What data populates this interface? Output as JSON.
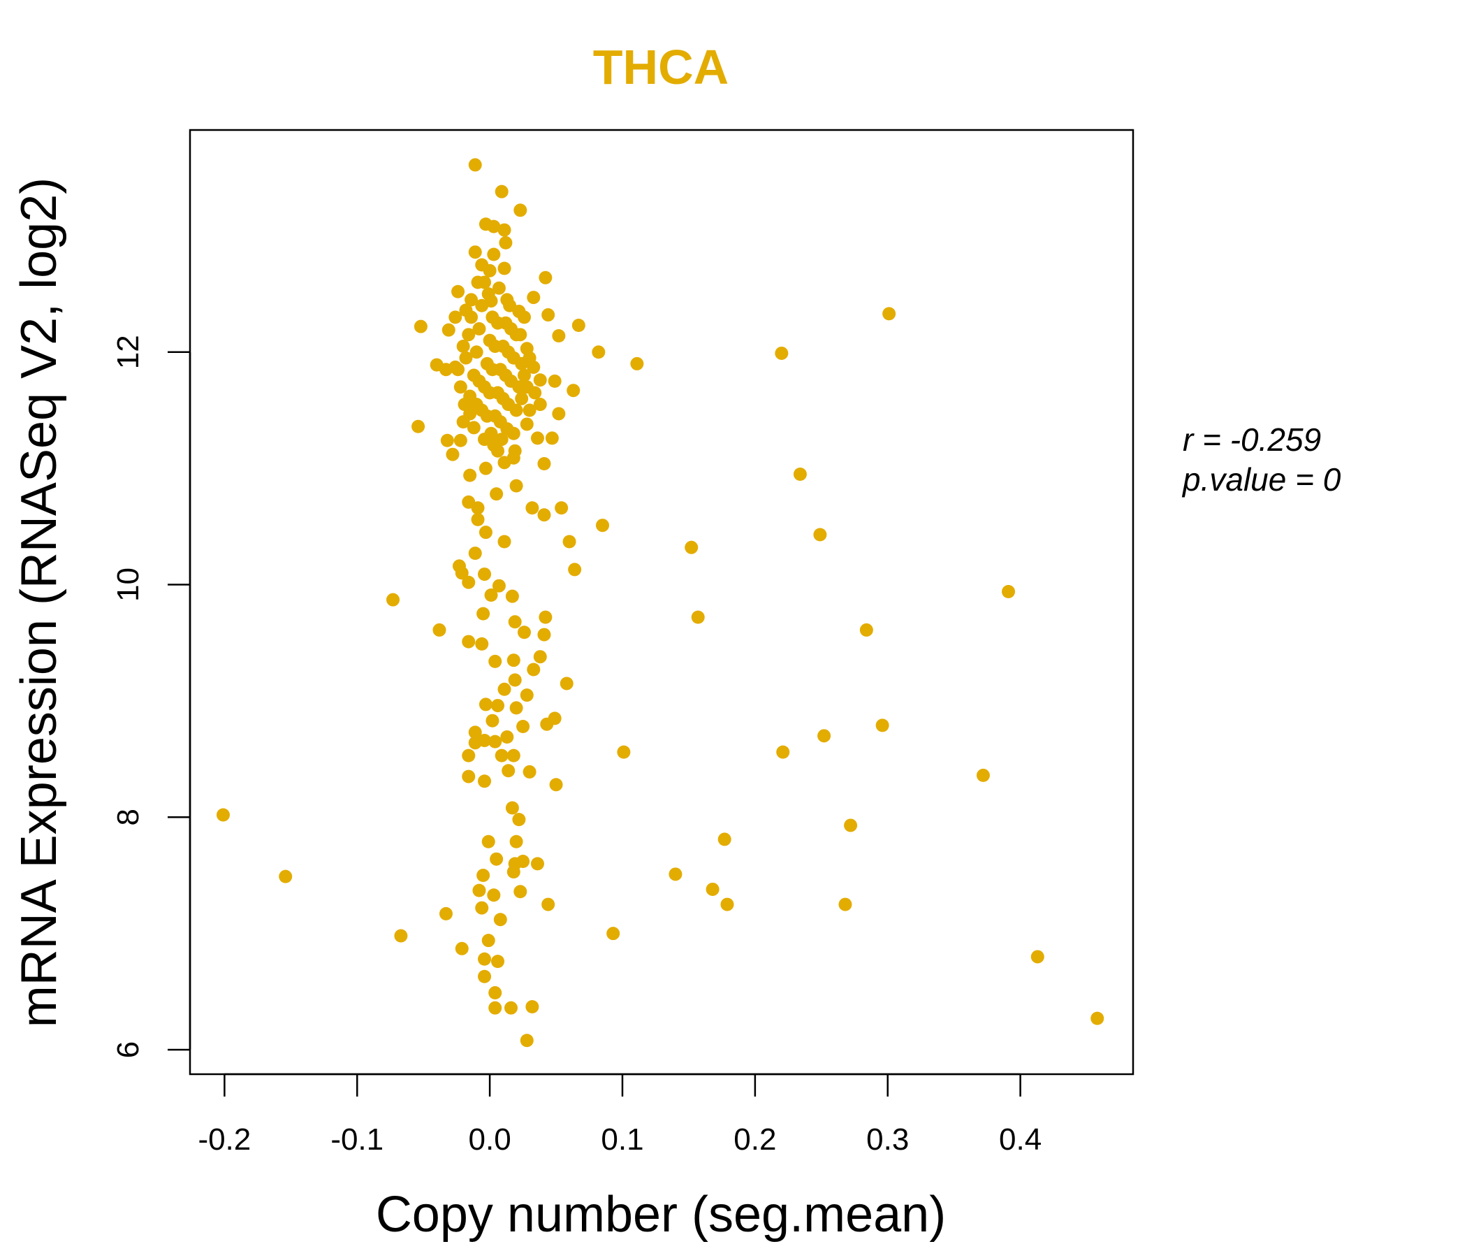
{
  "chart_data": {
    "type": "scatter",
    "title": "THCA",
    "xlabel": "Copy number (seg.mean)",
    "ylabel": "mRNA Expression (RNASeq V2, log2)",
    "xlim": [
      -0.226,
      0.485
    ],
    "ylim": [
      5.79,
      13.91
    ],
    "xticks": [
      -0.2,
      -0.1,
      0.0,
      0.1,
      0.2,
      0.3,
      0.4
    ],
    "xtick_labels": [
      "-0.2",
      "-0.1",
      "0.0",
      "0.1",
      "0.2",
      "0.3",
      "0.4"
    ],
    "yticks": [
      6,
      8,
      10,
      12
    ],
    "ytick_labels": [
      "6",
      "8",
      "10",
      "12"
    ],
    "grid": false,
    "color": "#E3AC00",
    "annotation": {
      "r": "r = -0.259",
      "p": "p.value = 0"
    },
    "points": [
      [
        -0.201,
        8.02
      ],
      [
        -0.154,
        7.49
      ],
      [
        -0.073,
        9.87
      ],
      [
        -0.067,
        6.98
      ],
      [
        -0.038,
        9.61
      ],
      [
        -0.033,
        7.17
      ],
      [
        -0.021,
        6.87
      ],
      [
        -0.052,
        12.22
      ],
      [
        -0.054,
        11.36
      ],
      [
        -0.04,
        11.89
      ],
      [
        0.082,
        12.0
      ],
      [
        0.111,
        11.9
      ],
      [
        0.067,
        12.23
      ],
      [
        0.085,
        10.51
      ],
      [
        0.06,
        10.37
      ],
      [
        0.064,
        10.13
      ],
      [
        0.054,
        10.66
      ],
      [
        0.041,
        11.04
      ],
      [
        0.047,
        11.26
      ],
      [
        0.052,
        11.47
      ],
      [
        0.063,
        11.67
      ],
      [
        0.058,
        9.15
      ],
      [
        0.049,
        8.85
      ],
      [
        0.05,
        8.28
      ],
      [
        0.044,
        7.25
      ],
      [
        0.036,
        7.6
      ],
      [
        0.032,
        6.37
      ],
      [
        0.028,
        6.08
      ],
      [
        0.016,
        6.36
      ],
      [
        0.004,
        6.36
      ],
      [
        0.004,
        6.49
      ],
      [
        -0.004,
        6.63
      ],
      [
        -0.004,
        6.78
      ],
      [
        0.006,
        6.76
      ],
      [
        -0.001,
        6.94
      ],
      [
        0.008,
        7.12
      ],
      [
        -0.006,
        7.22
      ],
      [
        0.003,
        7.33
      ],
      [
        -0.008,
        7.37
      ],
      [
        -0.005,
        7.5
      ],
      [
        0.023,
        7.36
      ],
      [
        0.018,
        7.53
      ],
      [
        0.019,
        7.6
      ],
      [
        0.025,
        7.62
      ],
      [
        0.005,
        7.64
      ],
      [
        -0.001,
        7.79
      ],
      [
        0.02,
        7.79
      ],
      [
        0.022,
        7.98
      ],
      [
        0.017,
        8.08
      ],
      [
        0.093,
        7.0
      ],
      [
        0.101,
        8.56
      ],
      [
        0.14,
        7.51
      ],
      [
        0.152,
        10.32
      ],
      [
        0.157,
        9.72
      ],
      [
        0.168,
        7.38
      ],
      [
        0.177,
        7.81
      ],
      [
        0.179,
        7.25
      ],
      [
        0.22,
        11.99
      ],
      [
        0.221,
        8.56
      ],
      [
        0.234,
        10.95
      ],
      [
        0.249,
        10.43
      ],
      [
        0.252,
        8.7
      ],
      [
        0.268,
        7.25
      ],
      [
        0.272,
        7.93
      ],
      [
        0.284,
        9.61
      ],
      [
        0.296,
        8.79
      ],
      [
        0.301,
        12.33
      ],
      [
        0.372,
        8.36
      ],
      [
        0.391,
        9.94
      ],
      [
        0.413,
        6.8
      ],
      [
        0.458,
        6.27
      ],
      [
        -0.011,
        13.61
      ],
      [
        0.009,
        13.38
      ],
      [
        0.023,
        13.22
      ],
      [
        -0.003,
        13.1
      ],
      [
        0.011,
        13.05
      ],
      [
        0.003,
        13.08
      ],
      [
        0.012,
        12.94
      ],
      [
        -0.011,
        12.86
      ],
      [
        0.003,
        12.84
      ],
      [
        0.011,
        12.72
      ],
      [
        0.042,
        12.64
      ],
      [
        -0.024,
        12.52
      ],
      [
        0.033,
        12.47
      ],
      [
        0.044,
        12.32
      ],
      [
        -0.031,
        12.19
      ],
      [
        -0.016,
        10.71
      ],
      [
        -0.009,
        10.56
      ],
      [
        -0.003,
        10.45
      ],
      [
        0.011,
        10.37
      ],
      [
        -0.011,
        10.27
      ],
      [
        -0.023,
        10.16
      ],
      [
        -0.021,
        10.1
      ],
      [
        -0.016,
        10.02
      ],
      [
        -0.004,
        10.09
      ],
      [
        0.001,
        9.91
      ],
      [
        0.007,
        9.99
      ],
      [
        0.017,
        9.9
      ],
      [
        0.019,
        9.68
      ],
      [
        -0.005,
        9.75
      ],
      [
        0.042,
        9.72
      ],
      [
        0.041,
        9.57
      ],
      [
        0.026,
        9.59
      ],
      [
        -0.016,
        9.51
      ],
      [
        -0.006,
        9.49
      ],
      [
        0.004,
        9.34
      ],
      [
        0.018,
        9.35
      ],
      [
        0.038,
        9.38
      ],
      [
        0.033,
        9.27
      ],
      [
        0.011,
        9.1
      ],
      [
        0.028,
        9.05
      ],
      [
        0.019,
        9.18
      ],
      [
        -0.003,
        8.97
      ],
      [
        0.006,
        8.96
      ],
      [
        0.02,
        8.94
      ],
      [
        0.002,
        8.83
      ],
      [
        0.025,
        8.78
      ],
      [
        -0.011,
        8.73
      ],
      [
        -0.004,
        8.66
      ],
      [
        0.013,
        8.69
      ],
      [
        -0.011,
        8.64
      ],
      [
        -0.016,
        8.53
      ],
      [
        0.009,
        8.53
      ],
      [
        0.018,
        8.53
      ],
      [
        0.014,
        8.4
      ],
      [
        0.03,
        8.39
      ],
      [
        -0.016,
        8.35
      ],
      [
        -0.004,
        8.31
      ],
      [
        0.004,
        8.65
      ],
      [
        0.043,
        8.8
      ],
      [
        -0.009,
        10.66
      ],
      [
        0.005,
        10.78
      ],
      [
        0.02,
        10.85
      ],
      [
        0.032,
        10.66
      ],
      [
        0.041,
        10.6
      ],
      [
        -0.015,
        10.94
      ],
      [
        -0.003,
        11.0
      ],
      [
        0.018,
        11.09
      ],
      [
        0.006,
        11.15
      ],
      [
        -0.028,
        11.12
      ],
      [
        -0.032,
        11.24
      ],
      [
        -0.022,
        11.24
      ],
      [
        0.036,
        11.26
      ],
      [
        0.028,
        11.38
      ],
      [
        -0.015,
        11.47
      ],
      [
        0.001,
        11.3
      ],
      [
        0.013,
        11.34
      ],
      [
        -0.019,
        11.55
      ],
      [
        0.038,
        11.55
      ],
      [
        0.038,
        11.76
      ],
      [
        0.049,
        11.75
      ],
      [
        -0.033,
        11.85
      ],
      [
        -0.026,
        11.87
      ],
      [
        0.033,
        11.87
      ],
      [
        0.028,
        12.03
      ],
      [
        0.023,
        12.15
      ],
      [
        -0.018,
        12.36
      ],
      [
        -0.009,
        12.6
      ],
      [
        -0.004,
        12.6
      ],
      [
        0.001,
        12.44
      ],
      [
        0.013,
        12.45
      ],
      [
        0.052,
        12.14
      ],
      [
        -0.02,
        11.4
      ],
      [
        -0.015,
        11.62
      ],
      [
        -0.012,
        11.8
      ],
      [
        -0.01,
        12.0
      ],
      [
        -0.008,
        12.2
      ],
      [
        -0.006,
        11.5
      ],
      [
        -0.004,
        11.7
      ],
      [
        -0.002,
        11.9
      ],
      [
        0.0,
        12.1
      ],
      [
        0.002,
        12.3
      ],
      [
        0.004,
        11.45
      ],
      [
        0.006,
        11.65
      ],
      [
        0.008,
        11.85
      ],
      [
        0.01,
        12.05
      ],
      [
        0.012,
        12.25
      ],
      [
        0.014,
        11.55
      ],
      [
        0.016,
        11.75
      ],
      [
        0.018,
        11.95
      ],
      [
        0.02,
        12.15
      ],
      [
        0.022,
        12.35
      ],
      [
        0.024,
        11.6
      ],
      [
        0.026,
        11.8
      ],
      [
        0.028,
        11.7
      ],
      [
        0.03,
        11.95
      ],
      [
        -0.018,
        11.95
      ],
      [
        -0.016,
        12.15
      ],
      [
        -0.014,
        12.3
      ],
      [
        -0.012,
        11.35
      ],
      [
        -0.01,
        11.55
      ],
      [
        -0.008,
        11.75
      ],
      [
        -0.006,
        12.4
      ],
      [
        -0.004,
        11.25
      ],
      [
        -0.002,
        11.45
      ],
      [
        0.0,
        11.65
      ],
      [
        0.002,
        11.85
      ],
      [
        0.004,
        12.05
      ],
      [
        0.006,
        12.25
      ],
      [
        0.008,
        11.4
      ],
      [
        0.01,
        11.6
      ],
      [
        0.012,
        11.8
      ],
      [
        0.014,
        12.0
      ],
      [
        0.016,
        12.2
      ],
      [
        0.018,
        11.3
      ],
      [
        0.02,
        11.5
      ],
      [
        0.022,
        11.7
      ],
      [
        0.024,
        11.9
      ],
      [
        -0.022,
        11.7
      ],
      [
        -0.02,
        12.05
      ],
      [
        -0.024,
        11.85
      ],
      [
        0.003,
        11.2
      ],
      [
        0.009,
        11.25
      ],
      [
        -0.001,
        12.5
      ],
      [
        0.007,
        12.55
      ],
      [
        0.015,
        12.4
      ],
      [
        0.0,
        12.7
      ],
      [
        -0.006,
        12.75
      ],
      [
        0.026,
        12.3
      ],
      [
        0.03,
        11.5
      ],
      [
        0.034,
        11.65
      ],
      [
        -0.026,
        12.3
      ],
      [
        -0.014,
        12.45
      ],
      [
        0.019,
        11.15
      ],
      [
        0.011,
        11.05
      ]
    ]
  }
}
